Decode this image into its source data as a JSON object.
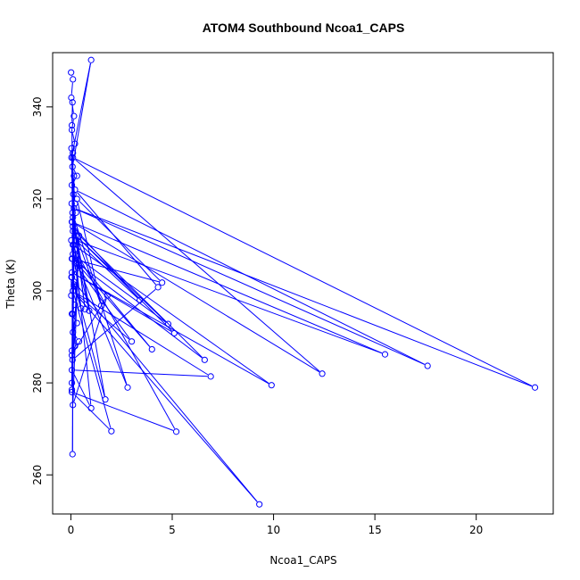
{
  "chart_data": {
    "type": "scatter",
    "title": "ATOM4 Southbound Ncoa1_CAPS",
    "xlabel": "Ncoa1_CAPS",
    "ylabel": "Theta (K)",
    "xlim": [
      -0.9,
      23.8
    ],
    "ylim": [
      251.5,
      351.8
    ],
    "xticks": [
      0,
      5,
      10,
      15,
      20
    ],
    "yticks": [
      260,
      280,
      300,
      320,
      340
    ],
    "grid": false,
    "series_color": "#0000ff",
    "series": [
      {
        "style": "points connected by lines",
        "x": [
          0.01,
          0.1,
          0.02,
          0.15,
          0.05,
          0.2,
          0.03,
          1.0,
          0.08,
          0.3,
          0.05,
          0.12,
          0.04,
          0.25,
          0.06,
          0.1,
          0.02,
          0.18,
          0.07,
          0.35,
          0.03,
          0.15,
          0.02,
          0.2,
          0.05,
          0.3,
          0.1,
          0.4,
          0.05,
          0.08,
          4.3,
          0.2,
          17.6,
          0.15,
          22.9,
          0.1,
          12.4,
          0.05,
          15.5,
          0.25,
          3.4,
          0.1,
          1.5,
          0.3,
          4.5,
          0.05,
          6.6,
          0.2,
          0.7,
          0.1,
          0.9,
          0.15,
          9.9,
          0.05,
          5.1,
          0.25,
          4.8,
          0.1,
          4.0,
          0.3,
          2.8,
          0.08,
          1.7,
          0.15,
          9.3,
          0.1,
          2.0,
          0.05,
          5.2,
          0.2,
          1.0,
          0.05,
          6.9,
          0.1,
          3.0,
          0.2,
          0.5,
          0.05,
          0.15,
          0.1,
          0.2,
          0.05,
          1.8,
          0.1,
          0.4,
          0.05,
          0.15,
          0.08,
          0.1,
          0.05,
          0.2,
          0.03,
          0.1,
          0.05,
          0.08
        ],
        "y": [
          347.5,
          346.0,
          342.0,
          338.0,
          335.0,
          332.0,
          329.0,
          350.2,
          327.0,
          325.0,
          323.0,
          321.0,
          319.0,
          317.0,
          315.0,
          313.0,
          311.0,
          309.0,
          307.0,
          305.0,
          303.0,
          301.0,
          299.0,
          297.0,
          295.0,
          293.0,
          291.0,
          289.0,
          287.0,
          285.0,
          300.8,
          322.0,
          283.7,
          318.0,
          279.0,
          329.0,
          282.0,
          315.0,
          286.2,
          311.0,
          298.0,
          314.0,
          296.8,
          320.0,
          301.8,
          307.0,
          285.0,
          313.0,
          296.0,
          316.0,
          295.7,
          310.0,
          279.5,
          304.0,
          290.8,
          312.0,
          292.8,
          308.0,
          287.3,
          306.0,
          279.0,
          317.0,
          276.4,
          302.0,
          253.6,
          300.0,
          269.5,
          278.0,
          269.4,
          309.0,
          274.5,
          282.8,
          281.4,
          300.0,
          289.0,
          306.0,
          296.2,
          303.0,
          301.4,
          295.0,
          288.0,
          286.0,
          299.0,
          275.2,
          312.0,
          280.0,
          325.0,
          264.5,
          330.0,
          278.5,
          319.0,
          331.0,
          310.0,
          336.0,
          341.0
        ]
      }
    ]
  }
}
